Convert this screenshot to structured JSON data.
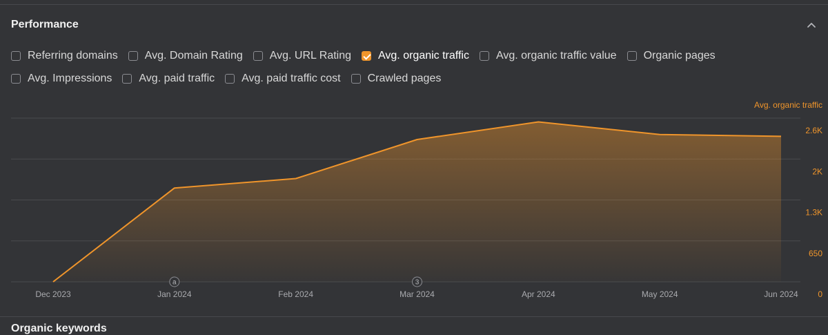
{
  "section": {
    "title": "Performance",
    "next_section_title": "Organic keywords"
  },
  "metrics": {
    "row1": [
      {
        "label": "Referring domains",
        "checked": false
      },
      {
        "label": "Avg. Domain Rating",
        "checked": false
      },
      {
        "label": "Avg. URL Rating",
        "checked": false
      },
      {
        "label": "Avg. organic traffic",
        "checked": true
      },
      {
        "label": "Avg. organic traffic value",
        "checked": false
      },
      {
        "label": "Organic pages",
        "checked": false
      }
    ],
    "row2": [
      {
        "label": "Avg. Impressions",
        "checked": false
      },
      {
        "label": "Avg. paid traffic",
        "checked": false
      },
      {
        "label": "Avg. paid traffic cost",
        "checked": false
      },
      {
        "label": "Crawled pages",
        "checked": false
      }
    ]
  },
  "colors": {
    "accent": "#f0952b",
    "background": "#333437",
    "grid": "#4a4b4f",
    "axis_text": "#a9aaae"
  },
  "chart_data": {
    "type": "area",
    "x": [
      "Dec 2023",
      "Jan 2024",
      "Feb 2024",
      "Mar 2024",
      "Apr 2024",
      "May 2024",
      "Jun 2024"
    ],
    "series": [
      {
        "name": "Avg. organic traffic",
        "values": [
          0,
          1490,
          1640,
          2260,
          2540,
          2340,
          2310
        ]
      }
    ],
    "ylabel": "Avg. organic traffic",
    "yticks": [
      "0",
      "650",
      "1.3K",
      "2K",
      "2.6K"
    ],
    "ylim": [
      0,
      2600
    ],
    "grid": true,
    "annotations": [
      {
        "x": "Jan 2024",
        "label": "a"
      },
      {
        "x": "Mar 2024",
        "label": "3"
      }
    ]
  }
}
